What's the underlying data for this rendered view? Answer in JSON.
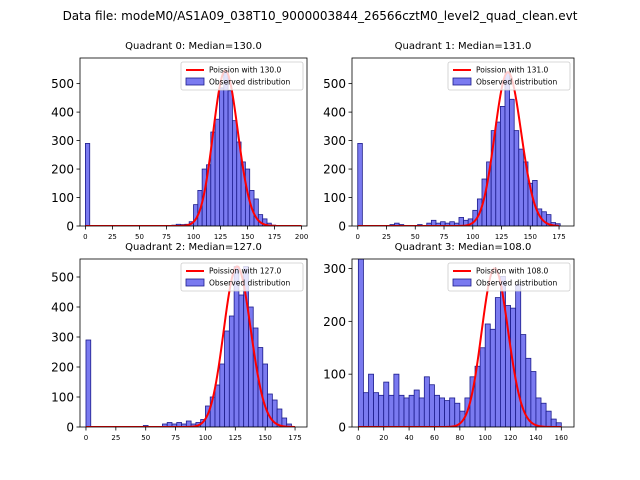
{
  "figure": {
    "suptitle": "Data file: modeM0/AS1A09_038T10_9000003844_26566cztM0_level2_quad_clean.evt",
    "colors": {
      "fit": "#ff0000",
      "bar_fill": "#7a7af0",
      "bar_edge": "#1c1c8c"
    }
  },
  "chart_data": [
    {
      "type": "bar",
      "title": "Quadrant 0: Median=130.0",
      "xlim": [
        -5,
        205
      ],
      "ylim": [
        0,
        590
      ],
      "xticks": [
        0,
        25,
        50,
        75,
        100,
        125,
        150,
        175,
        200
      ],
      "yticks": [
        0,
        100,
        200,
        300,
        400,
        500
      ],
      "legend_position": "top-right",
      "legend": [
        "Poission with 130.0",
        "Observed distribution"
      ],
      "fit": {
        "mean": 130.0,
        "peak": 545
      },
      "bin_width": 4,
      "bins": [
        {
          "x": 0,
          "count": 290
        },
        {
          "x": 80,
          "count": 3
        },
        {
          "x": 84,
          "count": 6
        },
        {
          "x": 88,
          "count": 5
        },
        {
          "x": 92,
          "count": 6
        },
        {
          "x": 96,
          "count": 15
        },
        {
          "x": 100,
          "count": 75
        },
        {
          "x": 104,
          "count": 125
        },
        {
          "x": 108,
          "count": 200
        },
        {
          "x": 112,
          "count": 215
        },
        {
          "x": 116,
          "count": 330
        },
        {
          "x": 120,
          "count": 375
        },
        {
          "x": 124,
          "count": 485
        },
        {
          "x": 128,
          "count": 540
        },
        {
          "x": 132,
          "count": 475
        },
        {
          "x": 136,
          "count": 370
        },
        {
          "x": 140,
          "count": 295
        },
        {
          "x": 144,
          "count": 225
        },
        {
          "x": 148,
          "count": 200
        },
        {
          "x": 152,
          "count": 125
        },
        {
          "x": 156,
          "count": 95
        },
        {
          "x": 160,
          "count": 40
        },
        {
          "x": 164,
          "count": 25
        },
        {
          "x": 168,
          "count": 10
        },
        {
          "x": 172,
          "count": 3
        }
      ]
    },
    {
      "type": "bar",
      "title": "Quadrant 1: Median=131.0",
      "xlim": [
        -5,
        188
      ],
      "ylim": [
        0,
        590
      ],
      "xticks": [
        0,
        25,
        50,
        75,
        100,
        125,
        150,
        175
      ],
      "yticks": [
        0,
        100,
        200,
        300,
        400,
        500
      ],
      "legend_position": "top-right",
      "legend": [
        "Poission with 131.0",
        "Observed distribution"
      ],
      "fit": {
        "mean": 131.0,
        "peak": 540
      },
      "bin_width": 4,
      "bins": [
        {
          "x": 0,
          "count": 290
        },
        {
          "x": 28,
          "count": 5
        },
        {
          "x": 32,
          "count": 10
        },
        {
          "x": 36,
          "count": 5
        },
        {
          "x": 52,
          "count": 5
        },
        {
          "x": 60,
          "count": 10
        },
        {
          "x": 64,
          "count": 20
        },
        {
          "x": 68,
          "count": 10
        },
        {
          "x": 72,
          "count": 15
        },
        {
          "x": 76,
          "count": 10
        },
        {
          "x": 80,
          "count": 15
        },
        {
          "x": 84,
          "count": 10
        },
        {
          "x": 88,
          "count": 30
        },
        {
          "x": 92,
          "count": 20
        },
        {
          "x": 96,
          "count": 25
        },
        {
          "x": 100,
          "count": 55
        },
        {
          "x": 104,
          "count": 95
        },
        {
          "x": 108,
          "count": 165
        },
        {
          "x": 112,
          "count": 225
        },
        {
          "x": 116,
          "count": 335
        },
        {
          "x": 120,
          "count": 365
        },
        {
          "x": 124,
          "count": 420
        },
        {
          "x": 128,
          "count": 540
        },
        {
          "x": 132,
          "count": 445
        },
        {
          "x": 136,
          "count": 335
        },
        {
          "x": 140,
          "count": 270
        },
        {
          "x": 144,
          "count": 225
        },
        {
          "x": 148,
          "count": 150
        },
        {
          "x": 152,
          "count": 160
        },
        {
          "x": 156,
          "count": 60
        },
        {
          "x": 160,
          "count": 50
        },
        {
          "x": 164,
          "count": 40
        },
        {
          "x": 168,
          "count": 12
        },
        {
          "x": 172,
          "count": 8
        }
      ]
    },
    {
      "type": "bar",
      "title": "Quadrant 2: Median=127.0",
      "xlim": [
        -5,
        185
      ],
      "ylim": [
        0,
        560
      ],
      "xticks": [
        0,
        25,
        50,
        75,
        100,
        125,
        150,
        175
      ],
      "yticks": [
        0,
        100,
        200,
        300,
        400,
        500
      ],
      "legend_position": "top-right",
      "legend": [
        "Poission with 127.0",
        "Observed distribution"
      ],
      "fit": {
        "mean": 127.0,
        "peak": 535
      },
      "bin_width": 4,
      "bins": [
        {
          "x": 0,
          "count": 290
        },
        {
          "x": 48,
          "count": 5
        },
        {
          "x": 64,
          "count": 10
        },
        {
          "x": 68,
          "count": 15
        },
        {
          "x": 72,
          "count": 10
        },
        {
          "x": 76,
          "count": 15
        },
        {
          "x": 80,
          "count": 10
        },
        {
          "x": 84,
          "count": 20
        },
        {
          "x": 88,
          "count": 10
        },
        {
          "x": 92,
          "count": 15
        },
        {
          "x": 96,
          "count": 25
        },
        {
          "x": 100,
          "count": 70
        },
        {
          "x": 104,
          "count": 100
        },
        {
          "x": 108,
          "count": 140
        },
        {
          "x": 112,
          "count": 210
        },
        {
          "x": 116,
          "count": 320
        },
        {
          "x": 120,
          "count": 370
        },
        {
          "x": 124,
          "count": 535
        },
        {
          "x": 128,
          "count": 440
        },
        {
          "x": 132,
          "count": 535
        },
        {
          "x": 136,
          "count": 400
        },
        {
          "x": 140,
          "count": 330
        },
        {
          "x": 144,
          "count": 265
        },
        {
          "x": 148,
          "count": 210
        },
        {
          "x": 152,
          "count": 110
        },
        {
          "x": 156,
          "count": 90
        },
        {
          "x": 160,
          "count": 60
        },
        {
          "x": 164,
          "count": 30
        },
        {
          "x": 168,
          "count": 10
        }
      ]
    },
    {
      "type": "bar",
      "title": "Quadrant 3: Median=108.0",
      "xlim": [
        -5,
        170
      ],
      "ylim": [
        0,
        318
      ],
      "xticks": [
        0,
        20,
        40,
        60,
        80,
        100,
        120,
        140,
        160
      ],
      "yticks": [
        0,
        100,
        200,
        300
      ],
      "legend_position": "top-right",
      "legend": [
        "Poission with 108.0",
        "Observed distribution"
      ],
      "fit": {
        "mean": 108.0,
        "peak": 300
      },
      "bin_width": 4,
      "bins": [
        {
          "x": 0,
          "count": 318
        },
        {
          "x": 4,
          "count": 65
        },
        {
          "x": 8,
          "count": 100
        },
        {
          "x": 12,
          "count": 65
        },
        {
          "x": 16,
          "count": 60
        },
        {
          "x": 20,
          "count": 85
        },
        {
          "x": 24,
          "count": 60
        },
        {
          "x": 28,
          "count": 100
        },
        {
          "x": 32,
          "count": 60
        },
        {
          "x": 36,
          "count": 55
        },
        {
          "x": 40,
          "count": 60
        },
        {
          "x": 44,
          "count": 70
        },
        {
          "x": 48,
          "count": 55
        },
        {
          "x": 52,
          "count": 95
        },
        {
          "x": 56,
          "count": 80
        },
        {
          "x": 60,
          "count": 60
        },
        {
          "x": 64,
          "count": 55
        },
        {
          "x": 68,
          "count": 50
        },
        {
          "x": 72,
          "count": 55
        },
        {
          "x": 76,
          "count": 45
        },
        {
          "x": 80,
          "count": 30
        },
        {
          "x": 84,
          "count": 55
        },
        {
          "x": 88,
          "count": 95
        },
        {
          "x": 92,
          "count": 115
        },
        {
          "x": 96,
          "count": 150
        },
        {
          "x": 100,
          "count": 195
        },
        {
          "x": 104,
          "count": 185
        },
        {
          "x": 108,
          "count": 245
        },
        {
          "x": 112,
          "count": 285
        },
        {
          "x": 116,
          "count": 230
        },
        {
          "x": 120,
          "count": 225
        },
        {
          "x": 124,
          "count": 270
        },
        {
          "x": 128,
          "count": 175
        },
        {
          "x": 132,
          "count": 130
        },
        {
          "x": 136,
          "count": 105
        },
        {
          "x": 140,
          "count": 55
        },
        {
          "x": 144,
          "count": 45
        },
        {
          "x": 148,
          "count": 30
        },
        {
          "x": 152,
          "count": 15
        },
        {
          "x": 156,
          "count": 8
        }
      ]
    }
  ]
}
